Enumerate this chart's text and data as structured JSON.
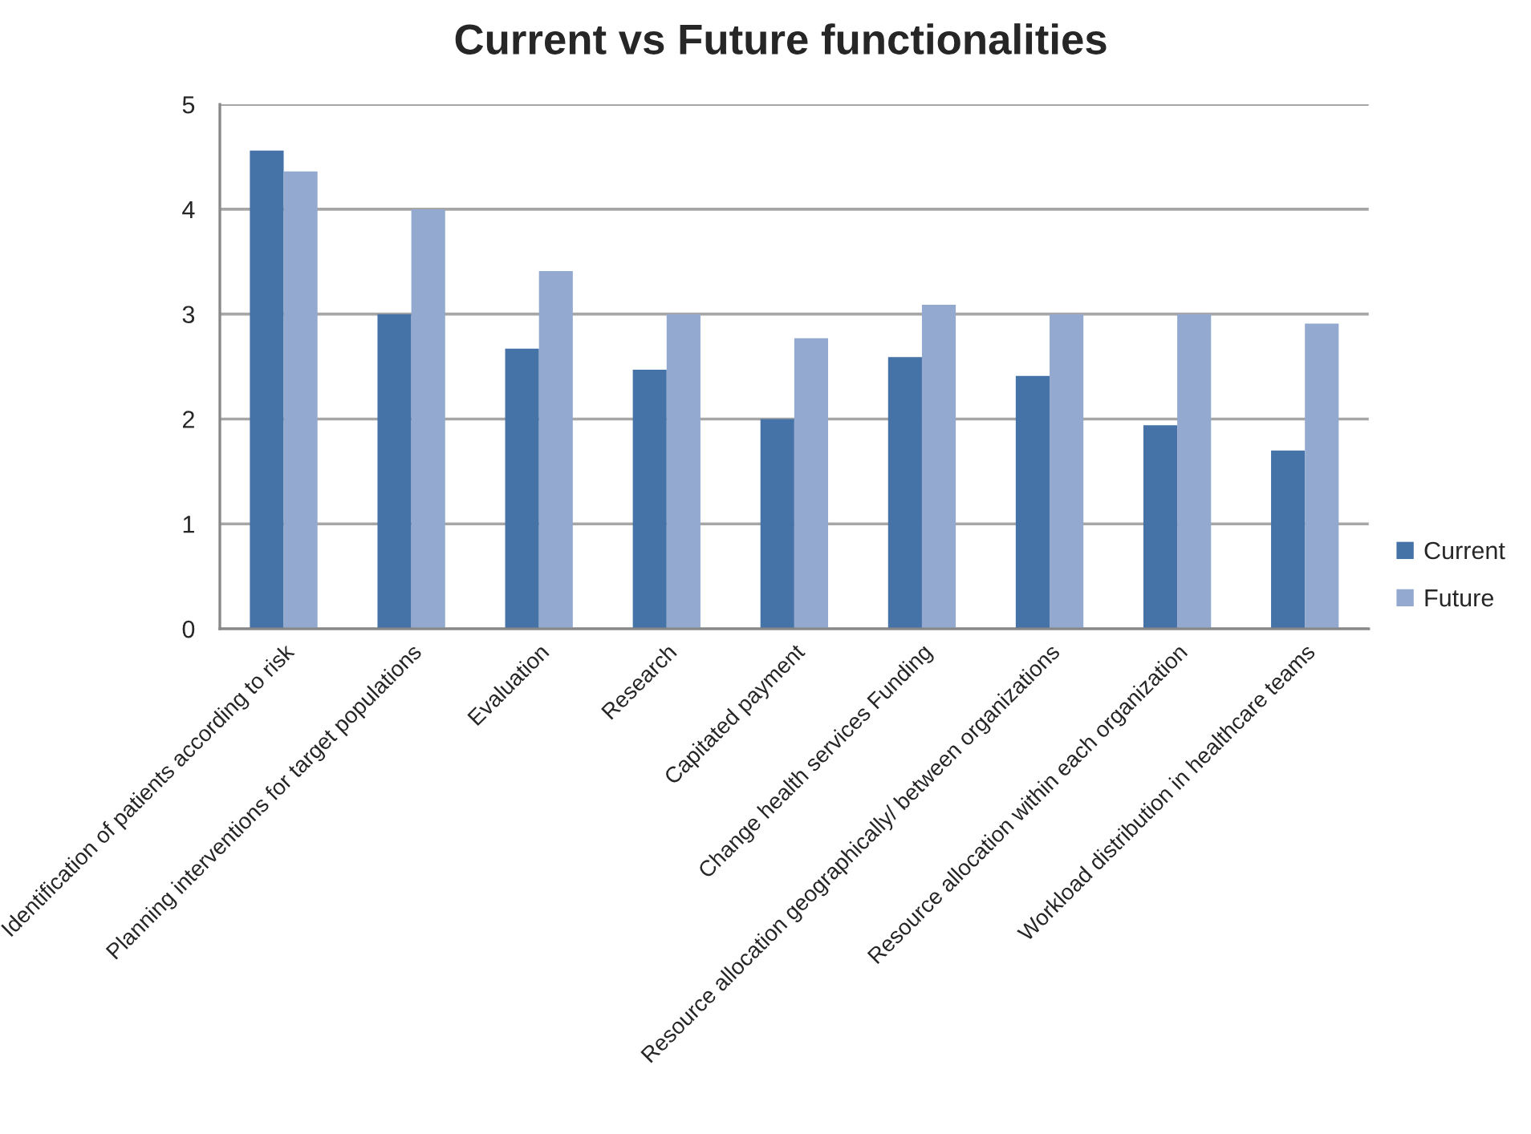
{
  "chart_data": {
    "type": "bar",
    "title": "Current vs Future functionalities",
    "categories": [
      "Identification of patients according to risk",
      "Planning interventions for target populations",
      "Evaluation",
      "Research",
      "Capitated payment",
      "Change health services Funding",
      "Resource allocation geographically/ between organizations",
      "Resource allocation within each organization",
      "Workload distribution in healthcare teams"
    ],
    "series": [
      {
        "name": "Current",
        "color": "#4572a7",
        "values": [
          4.56,
          3.0,
          2.67,
          2.47,
          2.0,
          2.59,
          2.41,
          1.94,
          1.7
        ]
      },
      {
        "name": "Future",
        "color": "#93a9cf",
        "values": [
          4.36,
          4.0,
          3.41,
          3.0,
          2.77,
          3.09,
          3.0,
          3.0,
          2.91
        ]
      }
    ],
    "ylim": [
      0,
      5
    ],
    "yticks": [
      0,
      1,
      2,
      3,
      4,
      5
    ],
    "grid": "y",
    "legend": "right"
  }
}
